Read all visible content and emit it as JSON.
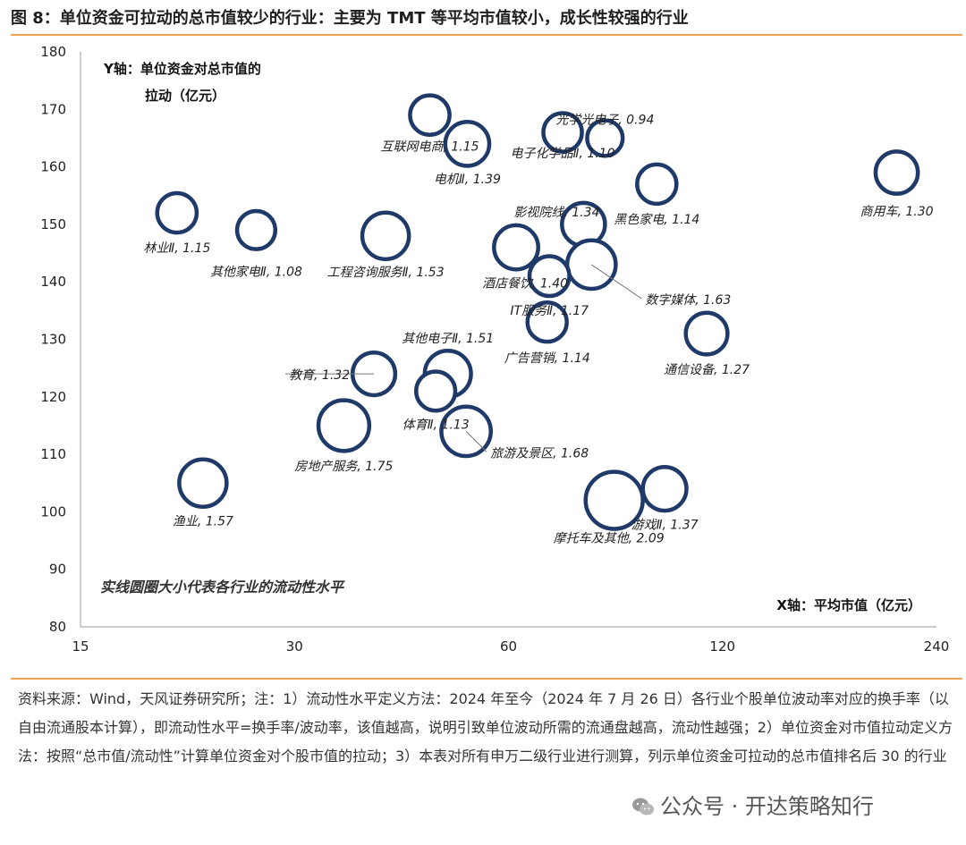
{
  "figure": {
    "title": "图 8：单位资金可拉动的总市值较少的行业：主要为 TMT 等平均市值较小，成长性较强的行业"
  },
  "chart_data": {
    "type": "bubble",
    "x_scale": "log",
    "xticks": [
      15,
      30,
      60,
      120,
      240
    ],
    "xlim": [
      15,
      240
    ],
    "yticks": [
      80,
      90,
      100,
      110,
      120,
      130,
      140,
      150,
      160,
      170,
      180
    ],
    "ylim": [
      80,
      180
    ],
    "xlabel": "X轴：平均市值（亿元）",
    "ylabel_line1": "Y轴：单位资金对总市值的",
    "ylabel_line2": "拉动（亿元）",
    "annotation": "实线圆圈大小代表各行业的流动性水平",
    "grid": false,
    "bubble_color": "#1f3a68",
    "points": [
      {
        "name": "互联网电商",
        "x": 46.5,
        "y": 169,
        "size": 1.15,
        "label": "互联网电商, 1.15"
      },
      {
        "name": "电机Ⅱ",
        "x": 52.5,
        "y": 164,
        "size": 1.39,
        "label": "电机Ⅱ, 1.39"
      },
      {
        "name": "电子化学品Ⅱ",
        "x": 71.5,
        "y": 166,
        "size": 1.1,
        "label": "电子化学品Ⅱ, 1.10"
      },
      {
        "name": "光学光电子",
        "x": 82,
        "y": 165,
        "size": 0.94,
        "label": "光学光电子, 0.94"
      },
      {
        "name": "商用车",
        "x": 211,
        "y": 159,
        "size": 1.3,
        "label": "商用车, 1.30"
      },
      {
        "name": "黑色家电",
        "x": 97,
        "y": 157,
        "size": 1.14,
        "label": "黑色家电, 1.14"
      },
      {
        "name": "林业Ⅱ",
        "x": 20.5,
        "y": 152,
        "size": 1.15,
        "label": "林业Ⅱ, 1.15"
      },
      {
        "name": "其他家电Ⅱ",
        "x": 26.5,
        "y": 149,
        "size": 1.08,
        "label": "其他家电Ⅱ, 1.08"
      },
      {
        "name": "工程咨询服务Ⅱ",
        "x": 40.3,
        "y": 148,
        "size": 1.53,
        "label": "工程咨询服务Ⅱ, 1.53"
      },
      {
        "name": "影视院线",
        "x": 76.5,
        "y": 150,
        "size": 1.34,
        "label": "影视院线, 1.34"
      },
      {
        "name": "酒店餐饮",
        "x": 61.5,
        "y": 146,
        "size": 1.4,
        "label": "酒店餐饮, 1.40"
      },
      {
        "name": "数字媒体",
        "x": 78.5,
        "y": 143,
        "size": 1.63,
        "label": "数字媒体, 1.63"
      },
      {
        "name": "IT服务Ⅱ",
        "x": 68.5,
        "y": 141,
        "size": 1.17,
        "label": "IT服务Ⅱ, 1.17"
      },
      {
        "name": "广告营销",
        "x": 68,
        "y": 133,
        "size": 1.14,
        "label": "广告营销, 1.14"
      },
      {
        "name": "通信设备",
        "x": 114,
        "y": 131,
        "size": 1.27,
        "label": "通信设备, 1.27"
      },
      {
        "name": "教育",
        "x": 38.8,
        "y": 124,
        "size": 1.32,
        "label": "教育, 1.32"
      },
      {
        "name": "其他电子Ⅱ",
        "x": 49.3,
        "y": 124,
        "size": 1.51,
        "label": "其他电子Ⅱ, 1.51"
      },
      {
        "name": "体育Ⅱ",
        "x": 47.4,
        "y": 121,
        "size": 1.13,
        "label": "体育Ⅱ, 1.13"
      },
      {
        "name": "房地产服务",
        "x": 35.2,
        "y": 115,
        "size": 1.75,
        "label": "房地产服务, 1.75"
      },
      {
        "name": "旅游及景区",
        "x": 52.3,
        "y": 114,
        "size": 1.68,
        "label": "旅游及景区, 1.68"
      },
      {
        "name": "渔业",
        "x": 22.3,
        "y": 105,
        "size": 1.57,
        "label": "渔业, 1.57"
      },
      {
        "name": "游戏Ⅱ",
        "x": 99.5,
        "y": 104,
        "size": 1.37,
        "label": "游戏Ⅱ, 1.37"
      },
      {
        "name": "摩托车及其他",
        "x": 84.5,
        "y": 102,
        "size": 2.09,
        "label": "摩托车及其他, 2.09"
      }
    ]
  },
  "footnote": {
    "text": "资料来源：Wind，天风证券研究所；注：1）流动性水平定义方法：2024 年至今（2024 年 7 月 26 日）各行业个股单位波动率对应的换手率（以自由流通股本计算），即流动性水平=换手率/波动率，该值越高，说明引致单位波动所需的流通盘越高，流动性越强；2）单位资金对市值拉动定义方法：按照“总市值/流动性”计算单位资金对个股市值的拉动；3）本表对所有申万二级行业进行测算，列示单位资金可拉动的总市值排名后 30 的行业"
  },
  "watermark": {
    "text": "公众号 · 开达策略知行",
    "icon": "wechat-icon"
  }
}
